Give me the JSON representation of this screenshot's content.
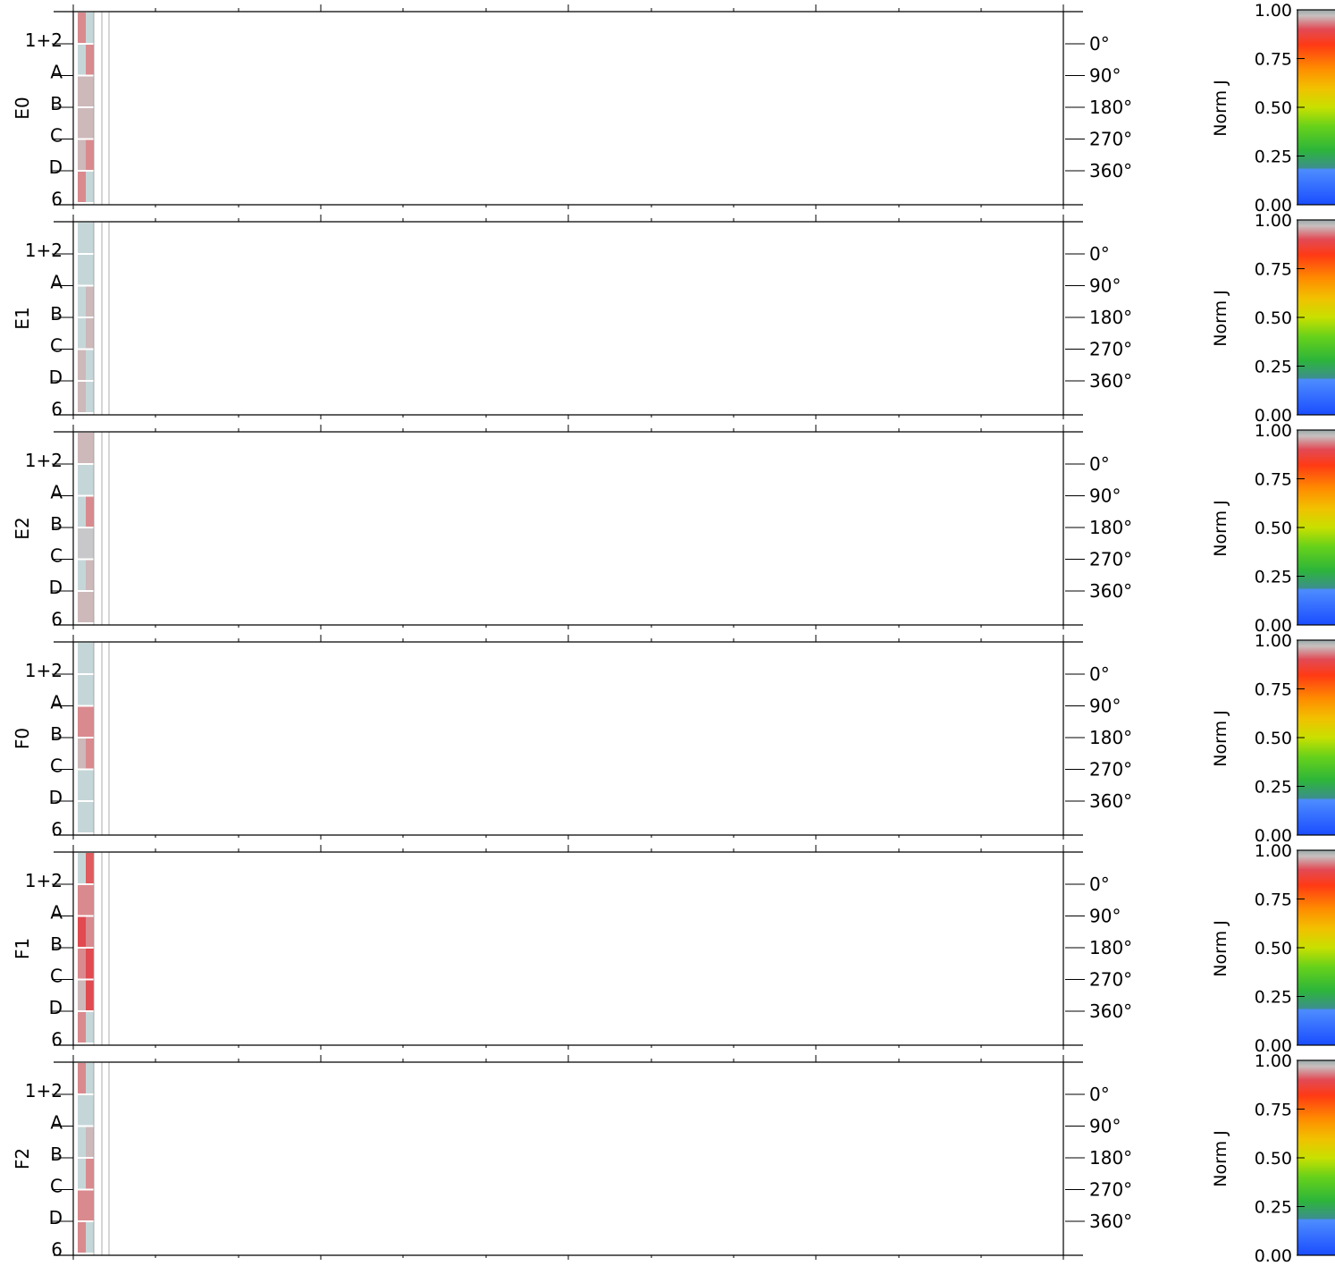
{
  "chart_data": {
    "type": "heatmap",
    "panel_rows": [
      "1+2",
      "A",
      "B",
      "C",
      "D",
      "6"
    ],
    "angle_labels": [
      "0°",
      "90°",
      "180°",
      "270°",
      "360°"
    ],
    "colorbar": {
      "label": "Norm J",
      "ticks": [
        "0.00",
        "0.25",
        "0.50",
        "0.75",
        "1.00"
      ],
      "range": [
        0,
        1
      ],
      "stops": [
        {
          "v": 0.0,
          "c": "#1a4dff"
        },
        {
          "v": 0.18,
          "c": "#4d8cff"
        },
        {
          "v": 0.19,
          "c": "#3c8f8c"
        },
        {
          "v": 0.28,
          "c": "#2db53a"
        },
        {
          "v": 0.4,
          "c": "#66d11a"
        },
        {
          "v": 0.5,
          "c": "#c8e000"
        },
        {
          "v": 0.6,
          "c": "#f2c000"
        },
        {
          "v": 0.7,
          "c": "#ff8c00"
        },
        {
          "v": 0.82,
          "c": "#ff3a14"
        },
        {
          "v": 0.9,
          "c": "#e24a55"
        },
        {
          "v": 0.97,
          "c": "#c8c0c0"
        },
        {
          "v": 1.0,
          "c": "#9aa8a8"
        }
      ]
    },
    "panels": [
      {
        "label": "E0",
        "cells": [
          [
            "#d98a8e",
            "#c5d6d8"
          ],
          [
            "#c5d6d8",
            "#d98a8e"
          ],
          [
            "#cdb8ba",
            "#cdb8ba"
          ],
          [
            "#cdb8ba",
            "#cdb8ba"
          ],
          [
            "#cdb8ba",
            "#d98a8e"
          ],
          [
            "#d98a8e",
            "#c5d6d8"
          ]
        ]
      },
      {
        "label": "E1",
        "cells": [
          [
            "#c5d6d8",
            "#c5d6d8"
          ],
          [
            "#c5d6d8",
            "#c5d6d8"
          ],
          [
            "#c5d6d8",
            "#cdb8ba"
          ],
          [
            "#c5d6d8",
            "#cdb8ba"
          ],
          [
            "#cdb8ba",
            "#c5d6d8"
          ],
          [
            "#cdb8ba",
            "#c5d6d8"
          ]
        ]
      },
      {
        "label": "E2",
        "cells": [
          [
            "#cdb8ba",
            "#cdb8ba"
          ],
          [
            "#c5d6d8",
            "#c5d6d8"
          ],
          [
            "#c5d6d8",
            "#d98a8e"
          ],
          [
            "#c8c8ca",
            "#c8c8ca"
          ],
          [
            "#c5d6d8",
            "#cdb8ba"
          ],
          [
            "#cdb8ba",
            "#cdb8ba"
          ]
        ]
      },
      {
        "label": "F0",
        "cells": [
          [
            "#c5d6d8",
            "#c5d6d8"
          ],
          [
            "#c5d6d8",
            "#c5d6d8"
          ],
          [
            "#d98a8e",
            "#d98a8e"
          ],
          [
            "#cdb8ba",
            "#d98a8e"
          ],
          [
            "#c5d6d8",
            "#c5d6d8"
          ],
          [
            "#c5d6d8",
            "#c5d6d8"
          ]
        ]
      },
      {
        "label": "F1",
        "cells": [
          [
            "#c5d6d8",
            "#e05a5e"
          ],
          [
            "#d98a8e",
            "#d98a8e"
          ],
          [
            "#e04a50",
            "#d98a8e"
          ],
          [
            "#d98a8e",
            "#e04a50"
          ],
          [
            "#cdb8ba",
            "#e04a50"
          ],
          [
            "#d98a8e",
            "#c5d6d8"
          ]
        ]
      },
      {
        "label": "F2",
        "cells": [
          [
            "#d98a8e",
            "#c5d6d8"
          ],
          [
            "#c5d6d8",
            "#c5d6d8"
          ],
          [
            "#c5d6d8",
            "#cdb8ba"
          ],
          [
            "#c5d6d8",
            "#d98a8e"
          ],
          [
            "#d98a8e",
            "#d98a8e"
          ],
          [
            "#d98a8e",
            "#c5d6d8"
          ]
        ]
      }
    ]
  }
}
